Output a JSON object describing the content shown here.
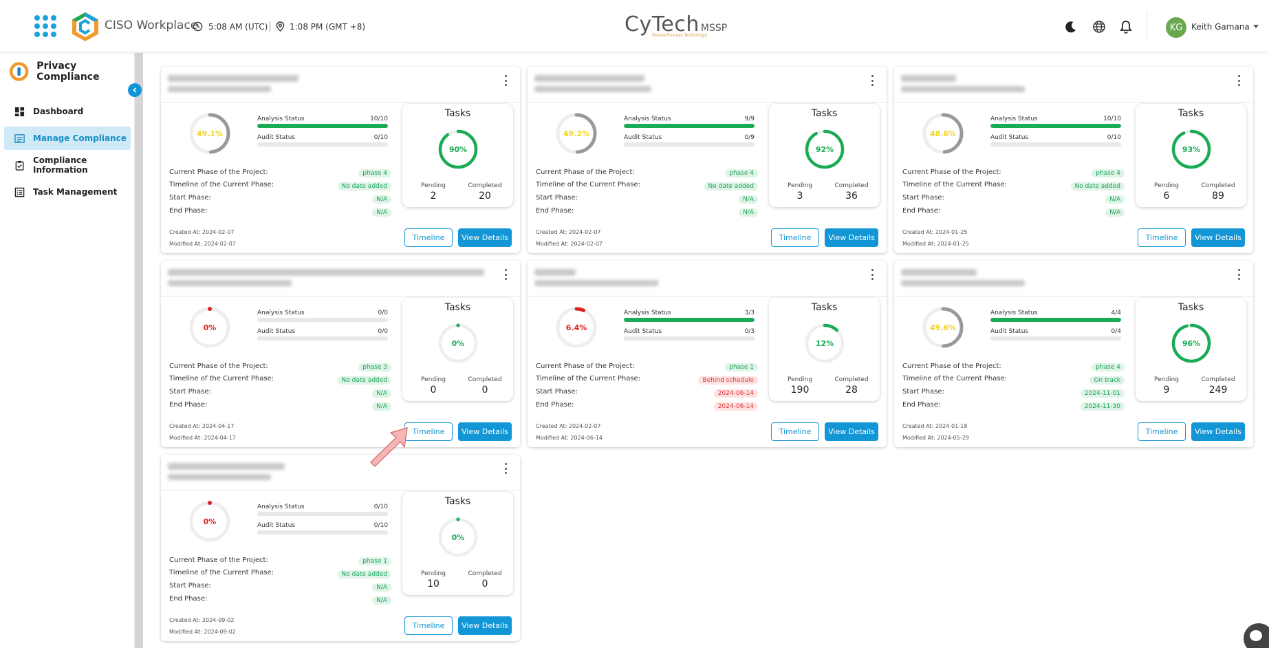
{
  "topbar": {
    "app_title": "CISO Workplace",
    "time_utc": "5:08 AM (UTC)",
    "time_local": "1:08 PM (GMT +8)",
    "brand_name": "CyTech",
    "brand_suffix": "MSSP",
    "brand_tagline": "People Process Technology",
    "user_initials": "KG",
    "user_name": "Keith Gamana"
  },
  "sidebar": {
    "title": "Privacy Compliance",
    "items": [
      {
        "label": "Dashboard",
        "icon": "dashboard-icon",
        "active": false
      },
      {
        "label": "Manage Compliance",
        "icon": "manage-compliance-icon",
        "active": true
      },
      {
        "label": "Compliance Information",
        "icon": "clipboard-icon",
        "active": false
      },
      {
        "label": "Task Management",
        "icon": "task-list-icon",
        "active": false
      }
    ]
  },
  "labels": {
    "analysis_status": "Analysis Status",
    "audit_status": "Audit Status",
    "current_phase": "Current Phase of the Project:",
    "timeline_phase": "Timeline of the Current Phase:",
    "start_phase": "Start Phase:",
    "end_phase": "End Phase:",
    "tasks": "Tasks",
    "pending": "Pending",
    "completed": "Completed",
    "timeline_button": "Timeline",
    "view_details_button": "View Details"
  },
  "colors": {
    "accent": "#1296d5",
    "green": "#1aab55",
    "red": "#e02020",
    "yellow": "#f0d41c",
    "ring_grey": "#999999"
  },
  "cards": [
    {
      "progress_label": "49.1%",
      "progress": 0.491,
      "progress_color": "yellow",
      "analysis": "10/10",
      "analysis_fill": 1,
      "audit": "0/10",
      "audit_fill": 0,
      "phase": "phase 4",
      "timeline": "No date added",
      "timeline_type": "green",
      "start": "N/A",
      "start_type": "green",
      "end": "N/A",
      "end_type": "green",
      "tasks_pct_label": "90%",
      "tasks_pct": 0.9,
      "pending": "2",
      "completed": "20",
      "created": "Created At: 2024-02-07",
      "modified": "Modified At: 2024-02-07"
    },
    {
      "progress_label": "49.2%",
      "progress": 0.492,
      "progress_color": "yellow",
      "analysis": "9/9",
      "analysis_fill": 1,
      "audit": "0/9",
      "audit_fill": 0,
      "phase": "phase 4",
      "timeline": "No date added",
      "timeline_type": "green",
      "start": "N/A",
      "start_type": "green",
      "end": "N/A",
      "end_type": "green",
      "tasks_pct_label": "92%",
      "tasks_pct": 0.92,
      "pending": "3",
      "completed": "36",
      "created": "Created At: 2024-02-07",
      "modified": "Modified At: 2024-02-07"
    },
    {
      "progress_label": "48.6%",
      "progress": 0.486,
      "progress_color": "yellow",
      "analysis": "10/10",
      "analysis_fill": 1,
      "audit": "0/10",
      "audit_fill": 0,
      "phase": "phase 4",
      "timeline": "No date added",
      "timeline_type": "green",
      "start": "N/A",
      "start_type": "green",
      "end": "N/A",
      "end_type": "green",
      "tasks_pct_label": "93%",
      "tasks_pct": 0.93,
      "pending": "6",
      "completed": "89",
      "created": "Created At: 2024-01-25",
      "modified": "Modified At: 2024-01-25"
    },
    {
      "progress_label": "0%",
      "progress": 0,
      "progress_color": "red",
      "analysis": "0/0",
      "analysis_fill": 0,
      "audit": "0/0",
      "audit_fill": 0,
      "phase": "phase 3",
      "timeline": "No date added",
      "timeline_type": "green",
      "start": "N/A",
      "start_type": "green",
      "end": "N/A",
      "end_type": "green",
      "tasks_pct_label": "0%",
      "tasks_pct": 0,
      "pending": "0",
      "completed": "0",
      "created": "Created At: 2024-04-17",
      "modified": "Modified At: 2024-04-17"
    },
    {
      "progress_label": "6.4%",
      "progress": 0.064,
      "progress_color": "red",
      "analysis": "3/3",
      "analysis_fill": 1,
      "audit": "0/3",
      "audit_fill": 0,
      "phase": "phase 1",
      "timeline": "Behind schedule",
      "timeline_type": "red",
      "start": "2024-06-14",
      "start_type": "red",
      "end": "2024-06-14",
      "end_type": "red",
      "tasks_pct_label": "12%",
      "tasks_pct": 0.12,
      "pending": "190",
      "completed": "28",
      "created": "Created At: 2024-02-07",
      "modified": "Modified At: 2024-06-14"
    },
    {
      "progress_label": "49.6%",
      "progress": 0.496,
      "progress_color": "yellow",
      "analysis": "4/4",
      "analysis_fill": 1,
      "audit": "0/4",
      "audit_fill": 0,
      "phase": "phase 4",
      "timeline": "On track",
      "timeline_type": "green",
      "start": "2024-11-01",
      "start_type": "green",
      "end": "2024-11-30",
      "end_type": "green",
      "tasks_pct_label": "96%",
      "tasks_pct": 0.96,
      "pending": "9",
      "completed": "249",
      "created": "Created At: 2024-01-18",
      "modified": "Modified At: 2024-05-29"
    },
    {
      "progress_label": "0%",
      "progress": 0,
      "progress_color": "red",
      "analysis": "0/10",
      "analysis_fill": 0,
      "audit": "0/10",
      "audit_fill": 0,
      "phase": "phase 1",
      "timeline": "No date added",
      "timeline_type": "green",
      "start": "N/A",
      "start_type": "green",
      "end": "N/A",
      "end_type": "green",
      "tasks_pct_label": "0%",
      "tasks_pct": 0,
      "pending": "10",
      "completed": "0",
      "created": "Created At: 2024-09-02",
      "modified": "Modified At: 2024-09-02"
    }
  ]
}
